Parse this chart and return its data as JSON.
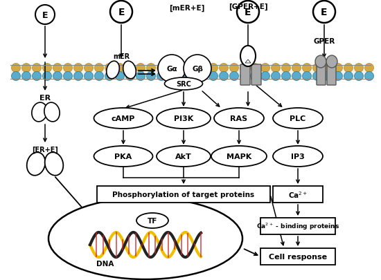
{
  "bg_color": "#ffffff",
  "membrane_color_outer": "#d4a843",
  "membrane_color_inner": "#4a9ab5",
  "gray_receptor": "#aaaaaa",
  "gray_receptor_dark": "#777777",
  "labels": {
    "E": "E",
    "mER": "mER",
    "mER_bracket": "[mER+E]",
    "GPER_bracket": "[GPER+E]",
    "GPER": "GPER",
    "Ga": "Gα",
    "Gb": "Gβ",
    "SRC": "SRC",
    "ER": "ER",
    "ER_bracket": "[ER+E]",
    "cAMP": "cAMP",
    "PI3K": "PI3K",
    "RAS": "RAS",
    "PLC": "PLC",
    "PKA": "PKA",
    "AkT": "AkT",
    "MAPK": "MAPK",
    "IP3": "IP3",
    "Ca2p": "Ca2+",
    "Ca2p_binding": "Ca2+ - binding proteins",
    "phospho": "Phosphorylation of target proteins",
    "TF": "TF",
    "DNA": "DNA",
    "cell_response": "Cell response"
  }
}
